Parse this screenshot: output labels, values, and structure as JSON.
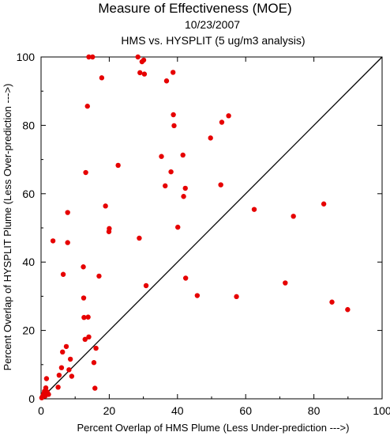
{
  "chart_data": {
    "type": "scatter",
    "title": "Measure of Effectiveness (MOE)",
    "date": "10/23/2007",
    "subtitle": "HMS vs. HYSPLIT  (5 ug/m3 analysis)",
    "xlabel": "Percent Overlap of HMS Plume (Less Under-prediction --->)",
    "ylabel": "Percent Overlap of HYSPLIT Plume (Less Over-prediction --->)",
    "xlim": [
      0,
      100
    ],
    "ylim": [
      0,
      100
    ],
    "xticks": [
      "0",
      "20",
      "40",
      "60",
      "80",
      "100"
    ],
    "yticks": [
      "0",
      "20",
      "40",
      "60",
      "80",
      "100"
    ],
    "grid": false,
    "reference_line": "y = x",
    "point_color": "#e60000",
    "line_color": "#000000",
    "points": [
      {
        "x": 0.2,
        "y": 0.3
      },
      {
        "x": 0.4,
        "y": 0.6
      },
      {
        "x": 0.6,
        "y": 1.0
      },
      {
        "x": 0.8,
        "y": 1.5
      },
      {
        "x": 1.0,
        "y": 2.2
      },
      {
        "x": 1.2,
        "y": 0.8
      },
      {
        "x": 1.4,
        "y": 3.2
      },
      {
        "x": 1.6,
        "y": 5.9
      },
      {
        "x": 1.8,
        "y": 2.0
      },
      {
        "x": 2.2,
        "y": 1.3
      },
      {
        "x": 3.5,
        "y": 46.2
      },
      {
        "x": 5.0,
        "y": 3.4
      },
      {
        "x": 5.3,
        "y": 6.9
      },
      {
        "x": 6.0,
        "y": 9.1
      },
      {
        "x": 6.3,
        "y": 13.7
      },
      {
        "x": 6.5,
        "y": 36.4
      },
      {
        "x": 7.4,
        "y": 15.3
      },
      {
        "x": 7.8,
        "y": 45.7
      },
      {
        "x": 7.8,
        "y": 54.5
      },
      {
        "x": 8.2,
        "y": 8.5
      },
      {
        "x": 8.6,
        "y": 11.6
      },
      {
        "x": 9.0,
        "y": 6.6
      },
      {
        "x": 12.4,
        "y": 38.6
      },
      {
        "x": 12.5,
        "y": 29.5
      },
      {
        "x": 12.6,
        "y": 23.8
      },
      {
        "x": 12.9,
        "y": 17.4
      },
      {
        "x": 13.1,
        "y": 66.2
      },
      {
        "x": 13.6,
        "y": 85.6
      },
      {
        "x": 13.8,
        "y": 23.9
      },
      {
        "x": 14.0,
        "y": 18.1
      },
      {
        "x": 14.0,
        "y": 100.0
      },
      {
        "x": 15.1,
        "y": 100.0
      },
      {
        "x": 15.5,
        "y": 10.6
      },
      {
        "x": 15.8,
        "y": 3.1
      },
      {
        "x": 16.1,
        "y": 14.8
      },
      {
        "x": 17.0,
        "y": 35.9
      },
      {
        "x": 17.8,
        "y": 93.9
      },
      {
        "x": 18.9,
        "y": 56.4
      },
      {
        "x": 19.9,
        "y": 48.9
      },
      {
        "x": 20.0,
        "y": 49.8
      },
      {
        "x": 22.6,
        "y": 68.3
      },
      {
        "x": 28.4,
        "y": 100.0
      },
      {
        "x": 28.8,
        "y": 47.0
      },
      {
        "x": 29.0,
        "y": 95.4
      },
      {
        "x": 29.6,
        "y": 98.6
      },
      {
        "x": 30.1,
        "y": 99.1
      },
      {
        "x": 30.3,
        "y": 95.0
      },
      {
        "x": 30.8,
        "y": 33.1
      },
      {
        "x": 35.3,
        "y": 70.9
      },
      {
        "x": 36.4,
        "y": 62.3
      },
      {
        "x": 36.8,
        "y": 93.0
      },
      {
        "x": 38.1,
        "y": 66.4
      },
      {
        "x": 38.7,
        "y": 95.5
      },
      {
        "x": 38.8,
        "y": 83.1
      },
      {
        "x": 39.0,
        "y": 79.9
      },
      {
        "x": 40.1,
        "y": 50.2
      },
      {
        "x": 41.6,
        "y": 71.3
      },
      {
        "x": 41.8,
        "y": 59.2
      },
      {
        "x": 42.3,
        "y": 61.6
      },
      {
        "x": 42.4,
        "y": 35.3
      },
      {
        "x": 45.8,
        "y": 30.2
      },
      {
        "x": 49.7,
        "y": 76.3
      },
      {
        "x": 52.7,
        "y": 62.6
      },
      {
        "x": 53.0,
        "y": 80.9
      },
      {
        "x": 55.0,
        "y": 82.8
      },
      {
        "x": 57.3,
        "y": 29.9
      },
      {
        "x": 62.5,
        "y": 55.4
      },
      {
        "x": 71.6,
        "y": 33.9
      },
      {
        "x": 74.0,
        "y": 53.4
      },
      {
        "x": 82.9,
        "y": 57.0
      },
      {
        "x": 85.3,
        "y": 28.3
      },
      {
        "x": 89.9,
        "y": 26.1
      }
    ]
  }
}
